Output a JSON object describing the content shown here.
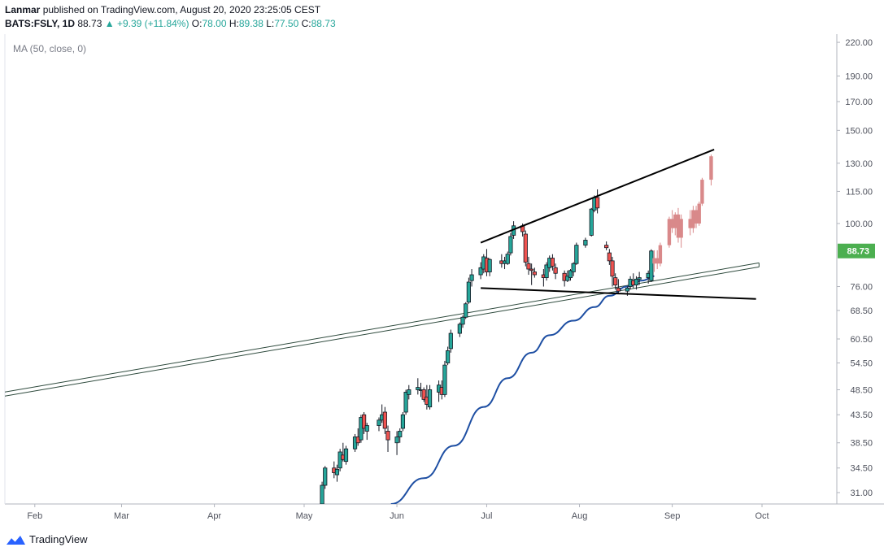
{
  "header": {
    "author": "Lanmar",
    "published_text": "published on TradingView.com, August 20, 2020 23:25:05 CEST",
    "symbol": "BATS:FSLY, 1D",
    "last": "88.73",
    "change": "▲ +9.39 (+11.84%)",
    "o_label": "O:",
    "o_value": "78.00",
    "h_label": "H:",
    "h_value": "89.38",
    "l_label": "L:",
    "l_value": "77.50",
    "c_label": "C:",
    "c_value": "88.73"
  },
  "indicator_label": "MA (50, close, 0)",
  "footer": {
    "brand": "TradingView"
  },
  "colors": {
    "up": "#26a69a",
    "down": "#ef5350",
    "ma": "#1e4fa3",
    "price_tag": "#4caf50",
    "projection": "#d9898a",
    "axis_text": "#50535e"
  },
  "chart_data": {
    "type": "candlestick",
    "title": "BATS:FSLY, 1D",
    "y_scale": "log",
    "ylim": [
      29.5,
      228
    ],
    "y_ticks": [
      "220.00",
      "190.00",
      "170.00",
      "150.00",
      "130.00",
      "115.00",
      "100.00",
      "76.00",
      "68.50",
      "60.50",
      "54.50",
      "48.50",
      "43.50",
      "38.50",
      "34.50",
      "31.00"
    ],
    "x_ticks": [
      "Feb",
      "Mar",
      "Apr",
      "May",
      "Jun",
      "Jul",
      "Aug",
      "Sep",
      "Oct"
    ],
    "x_tick_dates": [
      "2020-02-01",
      "2020-03-01",
      "2020-04-01",
      "2020-05-01",
      "2020-06-01",
      "2020-07-01",
      "2020-08-01",
      "2020-09-01",
      "2020-10-01"
    ],
    "xlim": [
      "2020-01-22",
      "2020-10-26"
    ],
    "last_price": "88.73",
    "candles": [
      {
        "date": "2020-05-07",
        "o": 29.5,
        "h": 32.5,
        "l": 29.0,
        "c": 32.0
      },
      {
        "date": "2020-05-08",
        "o": 32.0,
        "h": 34.8,
        "l": 31.5,
        "c": 34.5
      },
      {
        "date": "2020-05-11",
        "o": 34.5,
        "h": 35.5,
        "l": 33.0,
        "c": 33.8
      },
      {
        "date": "2020-05-12",
        "o": 33.5,
        "h": 35.0,
        "l": 32.5,
        "c": 34.3
      },
      {
        "date": "2020-05-13",
        "o": 34.5,
        "h": 37.5,
        "l": 34.0,
        "c": 37.0
      },
      {
        "date": "2020-05-14",
        "o": 36.5,
        "h": 38.5,
        "l": 35.5,
        "c": 35.8
      },
      {
        "date": "2020-05-15",
        "o": 35.5,
        "h": 38.0,
        "l": 35.0,
        "c": 37.5
      },
      {
        "date": "2020-05-18",
        "o": 37.5,
        "h": 40.0,
        "l": 37.0,
        "c": 39.5
      },
      {
        "date": "2020-05-19",
        "o": 39.5,
        "h": 41.0,
        "l": 38.0,
        "c": 38.5
      },
      {
        "date": "2020-05-20",
        "o": 39.0,
        "h": 43.5,
        "l": 38.5,
        "c": 43.0
      },
      {
        "date": "2020-05-21",
        "o": 43.5,
        "h": 44.0,
        "l": 40.0,
        "c": 41.0
      },
      {
        "date": "2020-05-22",
        "o": 40.5,
        "h": 42.0,
        "l": 39.0,
        "c": 41.5
      },
      {
        "date": "2020-05-26",
        "o": 41.5,
        "h": 43.0,
        "l": 40.5,
        "c": 42.5
      },
      {
        "date": "2020-05-27",
        "o": 42.5,
        "h": 45.5,
        "l": 42.0,
        "c": 43.5
      },
      {
        "date": "2020-05-28",
        "o": 44.0,
        "h": 45.0,
        "l": 40.0,
        "c": 41.0
      },
      {
        "date": "2020-05-29",
        "o": 40.5,
        "h": 41.5,
        "l": 37.0,
        "c": 39.0
      },
      {
        "date": "2020-06-01",
        "o": 38.5,
        "h": 40.5,
        "l": 36.5,
        "c": 39.5
      },
      {
        "date": "2020-06-02",
        "o": 39.5,
        "h": 41.0,
        "l": 38.5,
        "c": 40.5
      },
      {
        "date": "2020-06-03",
        "o": 41.0,
        "h": 44.0,
        "l": 40.5,
        "c": 43.5
      },
      {
        "date": "2020-06-04",
        "o": 44.0,
        "h": 48.5,
        "l": 43.5,
        "c": 48.0
      },
      {
        "date": "2020-06-05",
        "o": 47.5,
        "h": 49.5,
        "l": 46.5,
        "c": 48.5
      },
      {
        "date": "2020-06-08",
        "o": 48.5,
        "h": 51.0,
        "l": 47.5,
        "c": 49.0
      },
      {
        "date": "2020-06-09",
        "o": 48.5,
        "h": 50.0,
        "l": 47.0,
        "c": 48.5
      },
      {
        "date": "2020-06-10",
        "o": 48.5,
        "h": 49.0,
        "l": 46.0,
        "c": 46.5
      },
      {
        "date": "2020-06-11",
        "o": 47.0,
        "h": 49.5,
        "l": 44.5,
        "c": 45.5
      },
      {
        "date": "2020-06-12",
        "o": 45.0,
        "h": 49.5,
        "l": 44.5,
        "c": 48.5
      },
      {
        "date": "2020-06-15",
        "o": 48.0,
        "h": 50.5,
        "l": 46.0,
        "c": 49.5
      },
      {
        "date": "2020-06-16",
        "o": 49.0,
        "h": 50.5,
        "l": 46.5,
        "c": 47.5
      },
      {
        "date": "2020-06-17",
        "o": 47.5,
        "h": 55.0,
        "l": 47.0,
        "c": 54.0
      },
      {
        "date": "2020-06-18",
        "o": 54.5,
        "h": 58.5,
        "l": 54.0,
        "c": 57.5
      },
      {
        "date": "2020-06-19",
        "o": 58.0,
        "h": 63.0,
        "l": 57.0,
        "c": 62.0
      },
      {
        "date": "2020-06-22",
        "o": 62.0,
        "h": 65.0,
        "l": 61.0,
        "c": 64.5
      },
      {
        "date": "2020-06-23",
        "o": 64.5,
        "h": 67.0,
        "l": 63.5,
        "c": 66.5
      },
      {
        "date": "2020-06-24",
        "o": 66.5,
        "h": 71.0,
        "l": 66.0,
        "c": 70.5
      },
      {
        "date": "2020-06-25",
        "o": 71.0,
        "h": 79.0,
        "l": 70.5,
        "c": 77.5
      },
      {
        "date": "2020-06-26",
        "o": 78.0,
        "h": 82.0,
        "l": 76.0,
        "c": 80.0
      },
      {
        "date": "2020-06-29",
        "o": 80.0,
        "h": 84.5,
        "l": 78.5,
        "c": 82.5
      },
      {
        "date": "2020-06-30",
        "o": 82.0,
        "h": 87.5,
        "l": 80.5,
        "c": 86.5
      },
      {
        "date": "2020-07-01",
        "o": 86.0,
        "h": 89.5,
        "l": 79.5,
        "c": 81.0
      },
      {
        "date": "2020-07-02",
        "o": 81.0,
        "h": 86.0,
        "l": 79.5,
        "c": 85.5
      },
      {
        "date": "2020-07-06",
        "o": 85.0,
        "h": 87.5,
        "l": 82.5,
        "c": 84.0
      },
      {
        "date": "2020-07-07",
        "o": 84.0,
        "h": 86.5,
        "l": 82.0,
        "c": 85.0
      },
      {
        "date": "2020-07-08",
        "o": 84.0,
        "h": 88.5,
        "l": 83.5,
        "c": 87.5
      },
      {
        "date": "2020-07-09",
        "o": 88.0,
        "h": 96.0,
        "l": 87.0,
        "c": 94.5
      },
      {
        "date": "2020-07-10",
        "o": 95.0,
        "h": 101.0,
        "l": 93.5,
        "c": 99.0
      },
      {
        "date": "2020-07-13",
        "o": 99.0,
        "h": 100.0,
        "l": 94.5,
        "c": 96.5
      },
      {
        "date": "2020-07-14",
        "o": 95.5,
        "h": 97.0,
        "l": 83.0,
        "c": 84.5
      },
      {
        "date": "2020-07-15",
        "o": 84.0,
        "h": 86.5,
        "l": 80.0,
        "c": 82.0
      },
      {
        "date": "2020-07-16",
        "o": 82.0,
        "h": 84.0,
        "l": 76.5,
        "c": 81.5
      },
      {
        "date": "2020-07-17",
        "o": 81.0,
        "h": 82.5,
        "l": 79.0,
        "c": 80.0
      },
      {
        "date": "2020-07-20",
        "o": 80.0,
        "h": 82.0,
        "l": 76.0,
        "c": 79.0
      },
      {
        "date": "2020-07-21",
        "o": 79.0,
        "h": 84.5,
        "l": 78.0,
        "c": 83.5
      },
      {
        "date": "2020-07-22",
        "o": 82.5,
        "h": 87.0,
        "l": 81.0,
        "c": 86.0
      },
      {
        "date": "2020-07-23",
        "o": 86.0,
        "h": 87.5,
        "l": 81.5,
        "c": 83.0
      },
      {
        "date": "2020-07-24",
        "o": 82.5,
        "h": 84.0,
        "l": 78.5,
        "c": 80.5
      },
      {
        "date": "2020-07-27",
        "o": 80.5,
        "h": 81.5,
        "l": 76.0,
        "c": 78.0
      },
      {
        "date": "2020-07-28",
        "o": 78.0,
        "h": 81.5,
        "l": 77.5,
        "c": 79.5
      },
      {
        "date": "2020-07-29",
        "o": 79.0,
        "h": 82.0,
        "l": 78.0,
        "c": 81.5
      },
      {
        "date": "2020-07-30",
        "o": 81.0,
        "h": 84.5,
        "l": 79.5,
        "c": 84.0
      },
      {
        "date": "2020-07-31",
        "o": 84.0,
        "h": 92.0,
        "l": 83.5,
        "c": 91.0
      },
      {
        "date": "2020-08-03",
        "o": 91.0,
        "h": 94.0,
        "l": 90.0,
        "c": 93.0
      },
      {
        "date": "2020-08-05",
        "o": 95.0,
        "h": 107.0,
        "l": 94.5,
        "c": 106.5
      },
      {
        "date": "2020-08-06",
        "o": 106.0,
        "h": 113.0,
        "l": 105.0,
        "c": 112.0
      },
      {
        "date": "2020-08-07",
        "o": 112.0,
        "h": 116.0,
        "l": 104.5,
        "c": 107.0
      },
      {
        "date": "2020-08-10",
        "o": 91.0,
        "h": 92.5,
        "l": 89.0,
        "c": 90.0
      },
      {
        "date": "2020-08-11",
        "o": 88.0,
        "h": 89.5,
        "l": 83.5,
        "c": 85.0
      },
      {
        "date": "2020-08-12",
        "o": 85.0,
        "h": 86.5,
        "l": 76.0,
        "c": 79.5
      },
      {
        "date": "2020-08-13",
        "o": 79.0,
        "h": 80.5,
        "l": 75.0,
        "c": 76.5
      },
      {
        "date": "2020-08-14",
        "o": 75.5,
        "h": 78.5,
        "l": 73.5,
        "c": 74.5
      },
      {
        "date": "2020-08-17",
        "o": 74.5,
        "h": 76.0,
        "l": 73.0,
        "c": 75.5
      },
      {
        "date": "2020-08-18",
        "o": 76.0,
        "h": 79.5,
        "l": 75.0,
        "c": 78.5
      },
      {
        "date": "2020-08-19",
        "o": 78.0,
        "h": 80.5,
        "l": 75.5,
        "c": 76.5
      },
      {
        "date": "2020-08-20",
        "o": 76.5,
        "h": 79.5,
        "l": 75.0,
        "c": 78.5
      },
      {
        "date": "2020-08-21",
        "o": 78.5,
        "h": 81.0,
        "l": 76.5,
        "c": 79.0
      },
      {
        "date": "2020-08-24",
        "o": 79.0,
        "h": 81.5,
        "l": 77.0,
        "c": 80.5
      },
      {
        "date": "2020-08-25",
        "o": 78.0,
        "h": 89.38,
        "l": 77.5,
        "c": 88.73
      }
    ],
    "projection": [
      {
        "date": "2020-08-26",
        "o": 84.0,
        "h": 89.0,
        "l": 81.0,
        "c": 86.0
      },
      {
        "date": "2020-08-27",
        "o": 86.0,
        "h": 89.0,
        "l": 82.0,
        "c": 84.0
      },
      {
        "date": "2020-08-28",
        "o": 84.0,
        "h": 92.0,
        "l": 83.0,
        "c": 91.0
      },
      {
        "date": "2020-08-31",
        "o": 91.0,
        "h": 103.0,
        "l": 90.0,
        "c": 102.0
      },
      {
        "date": "2020-09-01",
        "o": 102.0,
        "h": 106.0,
        "l": 96.0,
        "c": 98.0
      },
      {
        "date": "2020-09-02",
        "o": 98.0,
        "h": 105.0,
        "l": 95.0,
        "c": 104.0
      },
      {
        "date": "2020-09-03",
        "o": 104.0,
        "h": 107.0,
        "l": 92.0,
        "c": 94.0
      },
      {
        "date": "2020-09-04",
        "o": 94.0,
        "h": 104.0,
        "l": 90.0,
        "c": 102.0
      },
      {
        "date": "2020-09-07",
        "o": 102.0,
        "h": 106.0,
        "l": 95.0,
        "c": 98.0
      },
      {
        "date": "2020-09-08",
        "o": 98.0,
        "h": 108.0,
        "l": 96.0,
        "c": 106.0
      },
      {
        "date": "2020-09-09",
        "o": 106.0,
        "h": 108.0,
        "l": 98.0,
        "c": 100.0
      },
      {
        "date": "2020-09-10",
        "o": 100.0,
        "h": 110.0,
        "l": 99.0,
        "c": 109.0
      },
      {
        "date": "2020-09-11",
        "o": 109.0,
        "h": 122.0,
        "l": 108.0,
        "c": 121.0
      },
      {
        "date": "2020-09-14",
        "o": 121.0,
        "h": 135.0,
        "l": 118.0,
        "c": 134.0
      }
    ],
    "ma_series": {
      "name": "MA (50, close, 0)",
      "points": [
        {
          "date": "2020-05-30",
          "v": 29.5
        },
        {
          "date": "2020-06-10",
          "v": 33.0
        },
        {
          "date": "2020-06-20",
          "v": 38.0
        },
        {
          "date": "2020-06-30",
          "v": 45.0
        },
        {
          "date": "2020-07-08",
          "v": 51.0
        },
        {
          "date": "2020-07-16",
          "v": 57.0
        },
        {
          "date": "2020-07-22",
          "v": 61.5
        },
        {
          "date": "2020-07-30",
          "v": 65.5
        },
        {
          "date": "2020-08-06",
          "v": 69.5
        },
        {
          "date": "2020-08-11",
          "v": 73.0
        },
        {
          "date": "2020-08-17",
          "v": 76.0
        },
        {
          "date": "2020-08-22",
          "v": 78.0
        },
        {
          "date": "2020-08-26",
          "v": 79.5
        }
      ]
    },
    "trend_lines": [
      {
        "name": "upper-resistance-line",
        "from": {
          "date": "2020-06-29",
          "v": 92.0
        },
        "to": {
          "date": "2020-09-15",
          "v": 138.0
        }
      },
      {
        "name": "lower-support-line",
        "from": {
          "date": "2020-06-29",
          "v": 75.5
        },
        "to": {
          "date": "2020-09-29",
          "v": 72.0
        }
      }
    ],
    "channel": {
      "from": {
        "date": "2020-01-22",
        "v": 47.6
      },
      "to": {
        "date": "2020-09-30",
        "v": 83.5
      }
    }
  }
}
